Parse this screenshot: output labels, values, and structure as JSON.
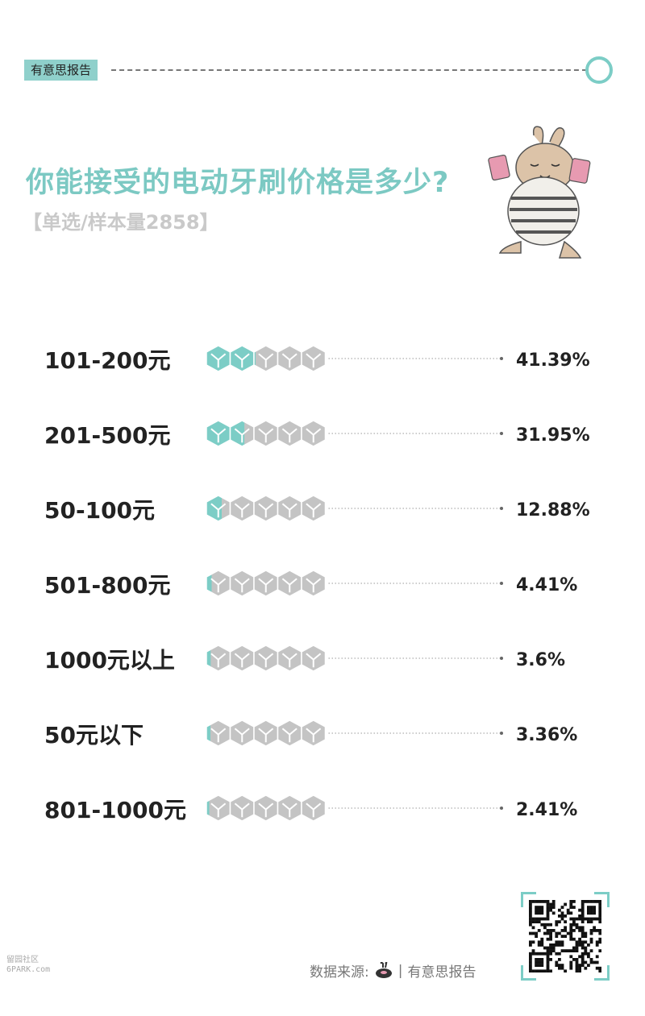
{
  "header": {
    "brand": "有意思报告"
  },
  "title": "你能接受的电动牙刷价格是多少?",
  "subtitle": "【单选/样本量2858】",
  "colors": {
    "accent": "#7ccdc6",
    "gray": "#c4c4c4",
    "title": "#7cc9c3",
    "subtitle": "#c9c9c9"
  },
  "chart_data": {
    "type": "bar",
    "categories": [
      "101-200元",
      "201-500元",
      "50-100元",
      "501-800元",
      "1000元以上",
      "50元以下",
      "801-1000元"
    ],
    "values": [
      41.39,
      31.95,
      12.88,
      4.41,
      3.6,
      3.36,
      2.41
    ],
    "value_labels": [
      "41.39%",
      "31.95%",
      "12.88%",
      "4.41%",
      "3.6%",
      "3.36%",
      "2.41%"
    ],
    "scale_max": 100,
    "blocks": 5,
    "xlabel": "",
    "ylabel": ""
  },
  "footer": {
    "source_label": "数据来源:",
    "source_name": "有意思报告",
    "watermark": [
      "留园社区",
      "6PARK.com"
    ]
  }
}
